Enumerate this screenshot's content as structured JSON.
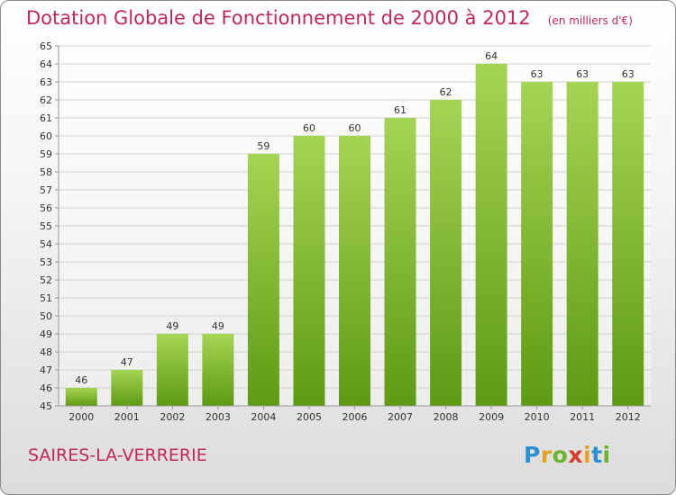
{
  "header": {
    "title": "Dotation Globale de Fonctionnement de 2000 à 2012",
    "subtitle": "(en milliers d'€)"
  },
  "footer": {
    "commune": "SAIRES-LA-VERRERIE",
    "logo": {
      "letters": [
        {
          "ch": "P",
          "color": "#2a8fd0"
        },
        {
          "ch": "r",
          "color": "#e8a21a"
        },
        {
          "ch": "o",
          "color": "#6ab42c"
        },
        {
          "ch": "x",
          "color": "#d93a2a"
        },
        {
          "ch": "i",
          "color": "#e8a21a"
        },
        {
          "ch": "t",
          "color": "#2a8fd0"
        },
        {
          "ch": "i",
          "color": "#6ab42c"
        }
      ]
    }
  },
  "chart_data": {
    "type": "bar",
    "categories": [
      "2000",
      "2001",
      "2002",
      "2003",
      "2004",
      "2005",
      "2006",
      "2007",
      "2008",
      "2009",
      "2010",
      "2011",
      "2012"
    ],
    "values": [
      46,
      47,
      49,
      49,
      59,
      60,
      60,
      61,
      62,
      64,
      63,
      63,
      63
    ],
    "data_labels": [
      "46",
      "47",
      "49",
      "49",
      "59",
      "60",
      "60",
      "61",
      "62",
      "64",
      "63",
      "63",
      "63"
    ],
    "ylim": [
      45,
      65
    ],
    "yticks": [
      "45",
      "46",
      "47",
      "48",
      "49",
      "50",
      "51",
      "52",
      "53",
      "54",
      "55",
      "56",
      "57",
      "58",
      "59",
      "60",
      "61",
      "62",
      "63",
      "64",
      "65"
    ],
    "grid": true,
    "colors": {
      "bar_top": "#a5d455",
      "bar_bottom": "#5e9a12",
      "grid": "#d0d0d0",
      "axis": "#999999",
      "text": "#333333",
      "accent": "#c0285a"
    }
  }
}
